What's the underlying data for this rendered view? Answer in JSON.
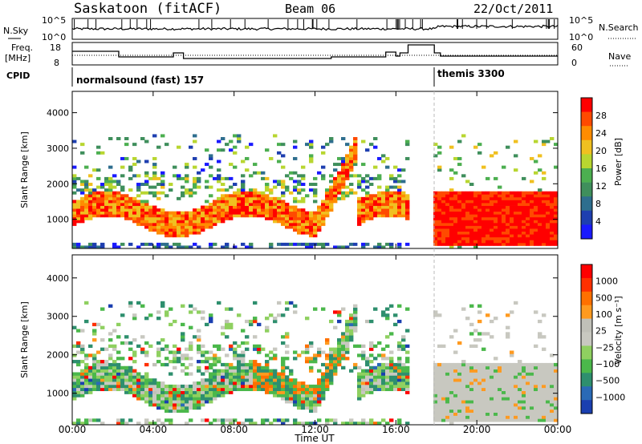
{
  "header": {
    "station": "Saskatoon (fitACF)",
    "beam": "Beam 06",
    "date": "22/Oct/2011"
  },
  "labels": {
    "nsky": "N.Sky",
    "nsearch": "N.Search",
    "freq_line1": "Freq.",
    "freq_line2": "[MHz]",
    "nave": "Nave",
    "cpid": "CPID"
  },
  "noise_panel": {
    "left_ticks": [
      "10^5",
      "10^0"
    ],
    "right_ticks": [
      "10^5",
      "10^0"
    ]
  },
  "freq_panel": {
    "left_ticks": [
      "18",
      "8"
    ],
    "right_ticks": [
      "60",
      "0"
    ]
  },
  "cpid_panel": {
    "programs": [
      {
        "name": "normalsound (fast) 157",
        "start": 0.0,
        "end": 17.9
      },
      {
        "name": "themis 3300",
        "start": 17.9,
        "end": 24.0
      }
    ]
  },
  "colors": {
    "power_scale": [
      "#1a1aff",
      "#1e3fb0",
      "#2e6e8e",
      "#3f8f5c",
      "#4caf50",
      "#b8d630",
      "#f0c020",
      "#ff8c00",
      "#ff4a00",
      "#ff0000"
    ],
    "velocity_scale": [
      "#1a3fb0",
      "#2a6ab6",
      "#2e8f6e",
      "#4bb84b",
      "#8fd060",
      "#c8c8c0",
      "#c0c0b8",
      "#ff9a20",
      "#ff7000",
      "#ff3000",
      "#ff0000"
    ]
  },
  "chart_data": [
    {
      "type": "heatmap",
      "panel": "power",
      "ylabel": "Slant Range [km]",
      "ylim": [
        180,
        4600
      ],
      "xlim": [
        0,
        24
      ],
      "yticks": [
        "1000",
        "2000",
        "3000",
        "4000"
      ],
      "colorbar_label": "Power [dB]",
      "colorbar_ticks": [
        "28",
        "24",
        "20",
        "16",
        "12",
        "8",
        "4"
      ],
      "gaps": [
        {
          "start": 16.6,
          "end": 17.9
        }
      ]
    },
    {
      "type": "heatmap",
      "panel": "velocity",
      "ylabel": "Slant Range [km]",
      "ylim": [
        180,
        4600
      ],
      "xlim": [
        0,
        24
      ],
      "yticks": [
        "1000",
        "2000",
        "3000",
        "4000"
      ],
      "xticks": [
        "00:00",
        "04:00",
        "08:00",
        "12:00",
        "16:00",
        "20:00",
        "00:00"
      ],
      "xlabel": "Time UT",
      "colorbar_label": "Velocity [m s⁻¹]",
      "colorbar_ticks": [
        "1000",
        "500",
        "100",
        "25",
        "−25",
        "−100",
        "−500",
        "−1000"
      ],
      "gaps": [
        {
          "start": 16.6,
          "end": 17.9
        }
      ]
    }
  ]
}
